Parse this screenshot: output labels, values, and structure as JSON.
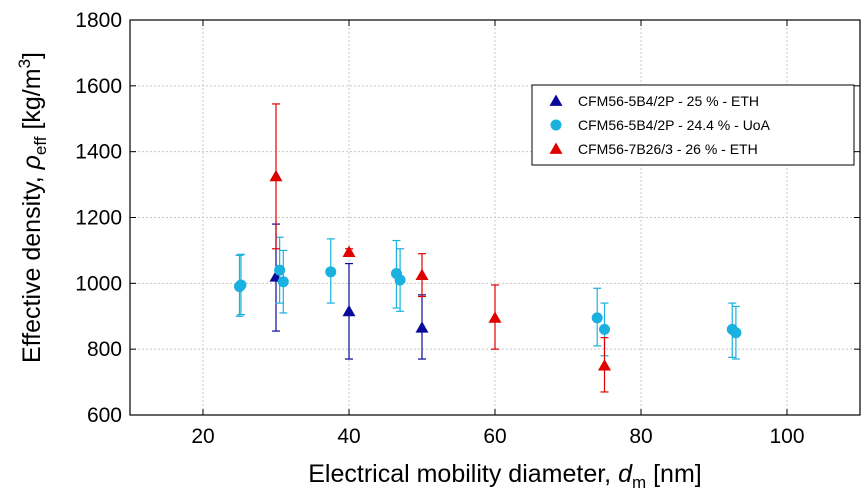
{
  "chart_data": {
    "type": "scatter",
    "xlabel": "Electrical mobility diameter, d_m [nm]",
    "xlabel_parts": {
      "prefix": "Electrical mobility diameter, ",
      "symbol": "d",
      "subscript": "m",
      "suffix": " [nm]"
    },
    "ylabel": "Effective density, ρ_eff [kg/m^3]",
    "ylabel_parts": {
      "prefix": "Effective density, ",
      "symbol": "ρ",
      "subscript": "eff",
      "unit_open": " [kg/m",
      "superscript": "3",
      "unit_close": "]"
    },
    "xlim": [
      10,
      110
    ],
    "ylim": [
      600,
      1800
    ],
    "x_ticks": [
      20,
      40,
      60,
      80,
      100
    ],
    "y_ticks": [
      600,
      800,
      1000,
      1200,
      1400,
      1600,
      1800
    ],
    "grid": true,
    "legend_position": "top-right",
    "series": [
      {
        "name": "CFM56-5B4/2P - 25 % - ETH",
        "marker": "triangle",
        "color": "#0a0a9a",
        "points": [
          {
            "x": 30,
            "y": 1020,
            "lo": 855,
            "hi": 1180
          },
          {
            "x": 40,
            "y": 915,
            "lo": 770,
            "hi": 1060
          },
          {
            "x": 50,
            "y": 865,
            "lo": 770,
            "hi": 965
          }
        ]
      },
      {
        "name": "CFM56-5B4/2P - 24.4 % - UoA",
        "marker": "circle",
        "color": "#1ab0e0",
        "points": [
          {
            "x": 25,
            "y": 990,
            "lo": 900,
            "hi": 1085
          },
          {
            "x": 25.2,
            "y": 995,
            "lo": 905,
            "hi": 1088
          },
          {
            "x": 30.5,
            "y": 1040,
            "lo": 940,
            "hi": 1140
          },
          {
            "x": 31,
            "y": 1005,
            "lo": 910,
            "hi": 1100
          },
          {
            "x": 37.5,
            "y": 1035,
            "lo": 940,
            "hi": 1135
          },
          {
            "x": 46.5,
            "y": 1030,
            "lo": 925,
            "hi": 1130
          },
          {
            "x": 47,
            "y": 1010,
            "lo": 915,
            "hi": 1105
          },
          {
            "x": 74,
            "y": 895,
            "lo": 810,
            "hi": 985
          },
          {
            "x": 75,
            "y": 860,
            "lo": 780,
            "hi": 940
          },
          {
            "x": 92.5,
            "y": 860,
            "lo": 775,
            "hi": 940
          },
          {
            "x": 93,
            "y": 850,
            "lo": 770,
            "hi": 930
          }
        ]
      },
      {
        "name": "CFM56-7B26/3 - 26 % - ETH",
        "marker": "triangle",
        "color": "#e00000",
        "points": [
          {
            "x": 30,
            "y": 1325,
            "lo": 1105,
            "hi": 1545
          },
          {
            "x": 40,
            "y": 1095,
            "lo": 1085,
            "hi": 1105
          },
          {
            "x": 50,
            "y": 1025,
            "lo": 960,
            "hi": 1090
          },
          {
            "x": 60,
            "y": 895,
            "lo": 800,
            "hi": 995
          },
          {
            "x": 75,
            "y": 750,
            "lo": 670,
            "hi": 835
          }
        ]
      }
    ]
  }
}
